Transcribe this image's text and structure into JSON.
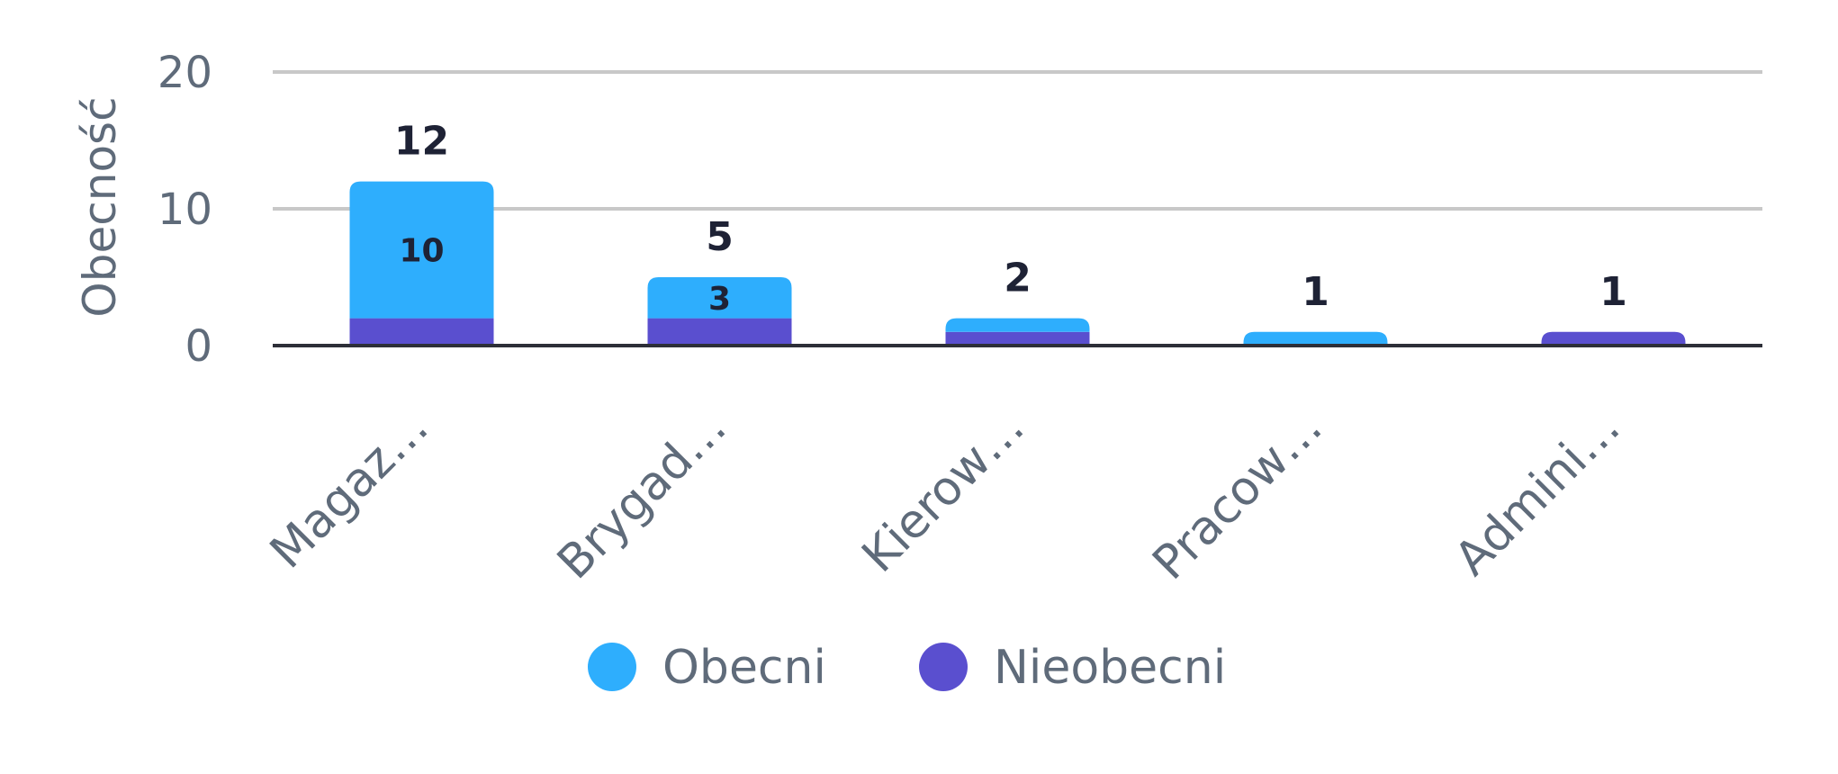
{
  "chart_data": {
    "type": "bar",
    "stacked": true,
    "categories": [
      "Magaz…",
      "Brygad…",
      "Kierow…",
      "Pracow…",
      "Admini…"
    ],
    "series": [
      {
        "name": "Nieobecni",
        "color": "#5a4fcf",
        "values": [
          2,
          2,
          1,
          0,
          1
        ]
      },
      {
        "name": "Obecni",
        "color": "#2eaefd",
        "values": [
          10,
          3,
          1,
          1,
          0
        ]
      }
    ],
    "totals": [
      12,
      5,
      2,
      1,
      1
    ],
    "segment_labels": [
      {
        "category_index": 0,
        "series": "Obecni",
        "text": "10"
      },
      {
        "category_index": 1,
        "series": "Obecni",
        "text": "3"
      }
    ],
    "ylabel": "Obecność",
    "xlabel": "",
    "ylim": [
      0,
      20
    ],
    "yticks": [
      0,
      10,
      20
    ],
    "grid": true,
    "legend": {
      "position": "bottom",
      "items": [
        {
          "label": "Obecni",
          "color": "#2eaefd"
        },
        {
          "label": "Nieobecni",
          "color": "#5a4fcf"
        }
      ]
    }
  }
}
